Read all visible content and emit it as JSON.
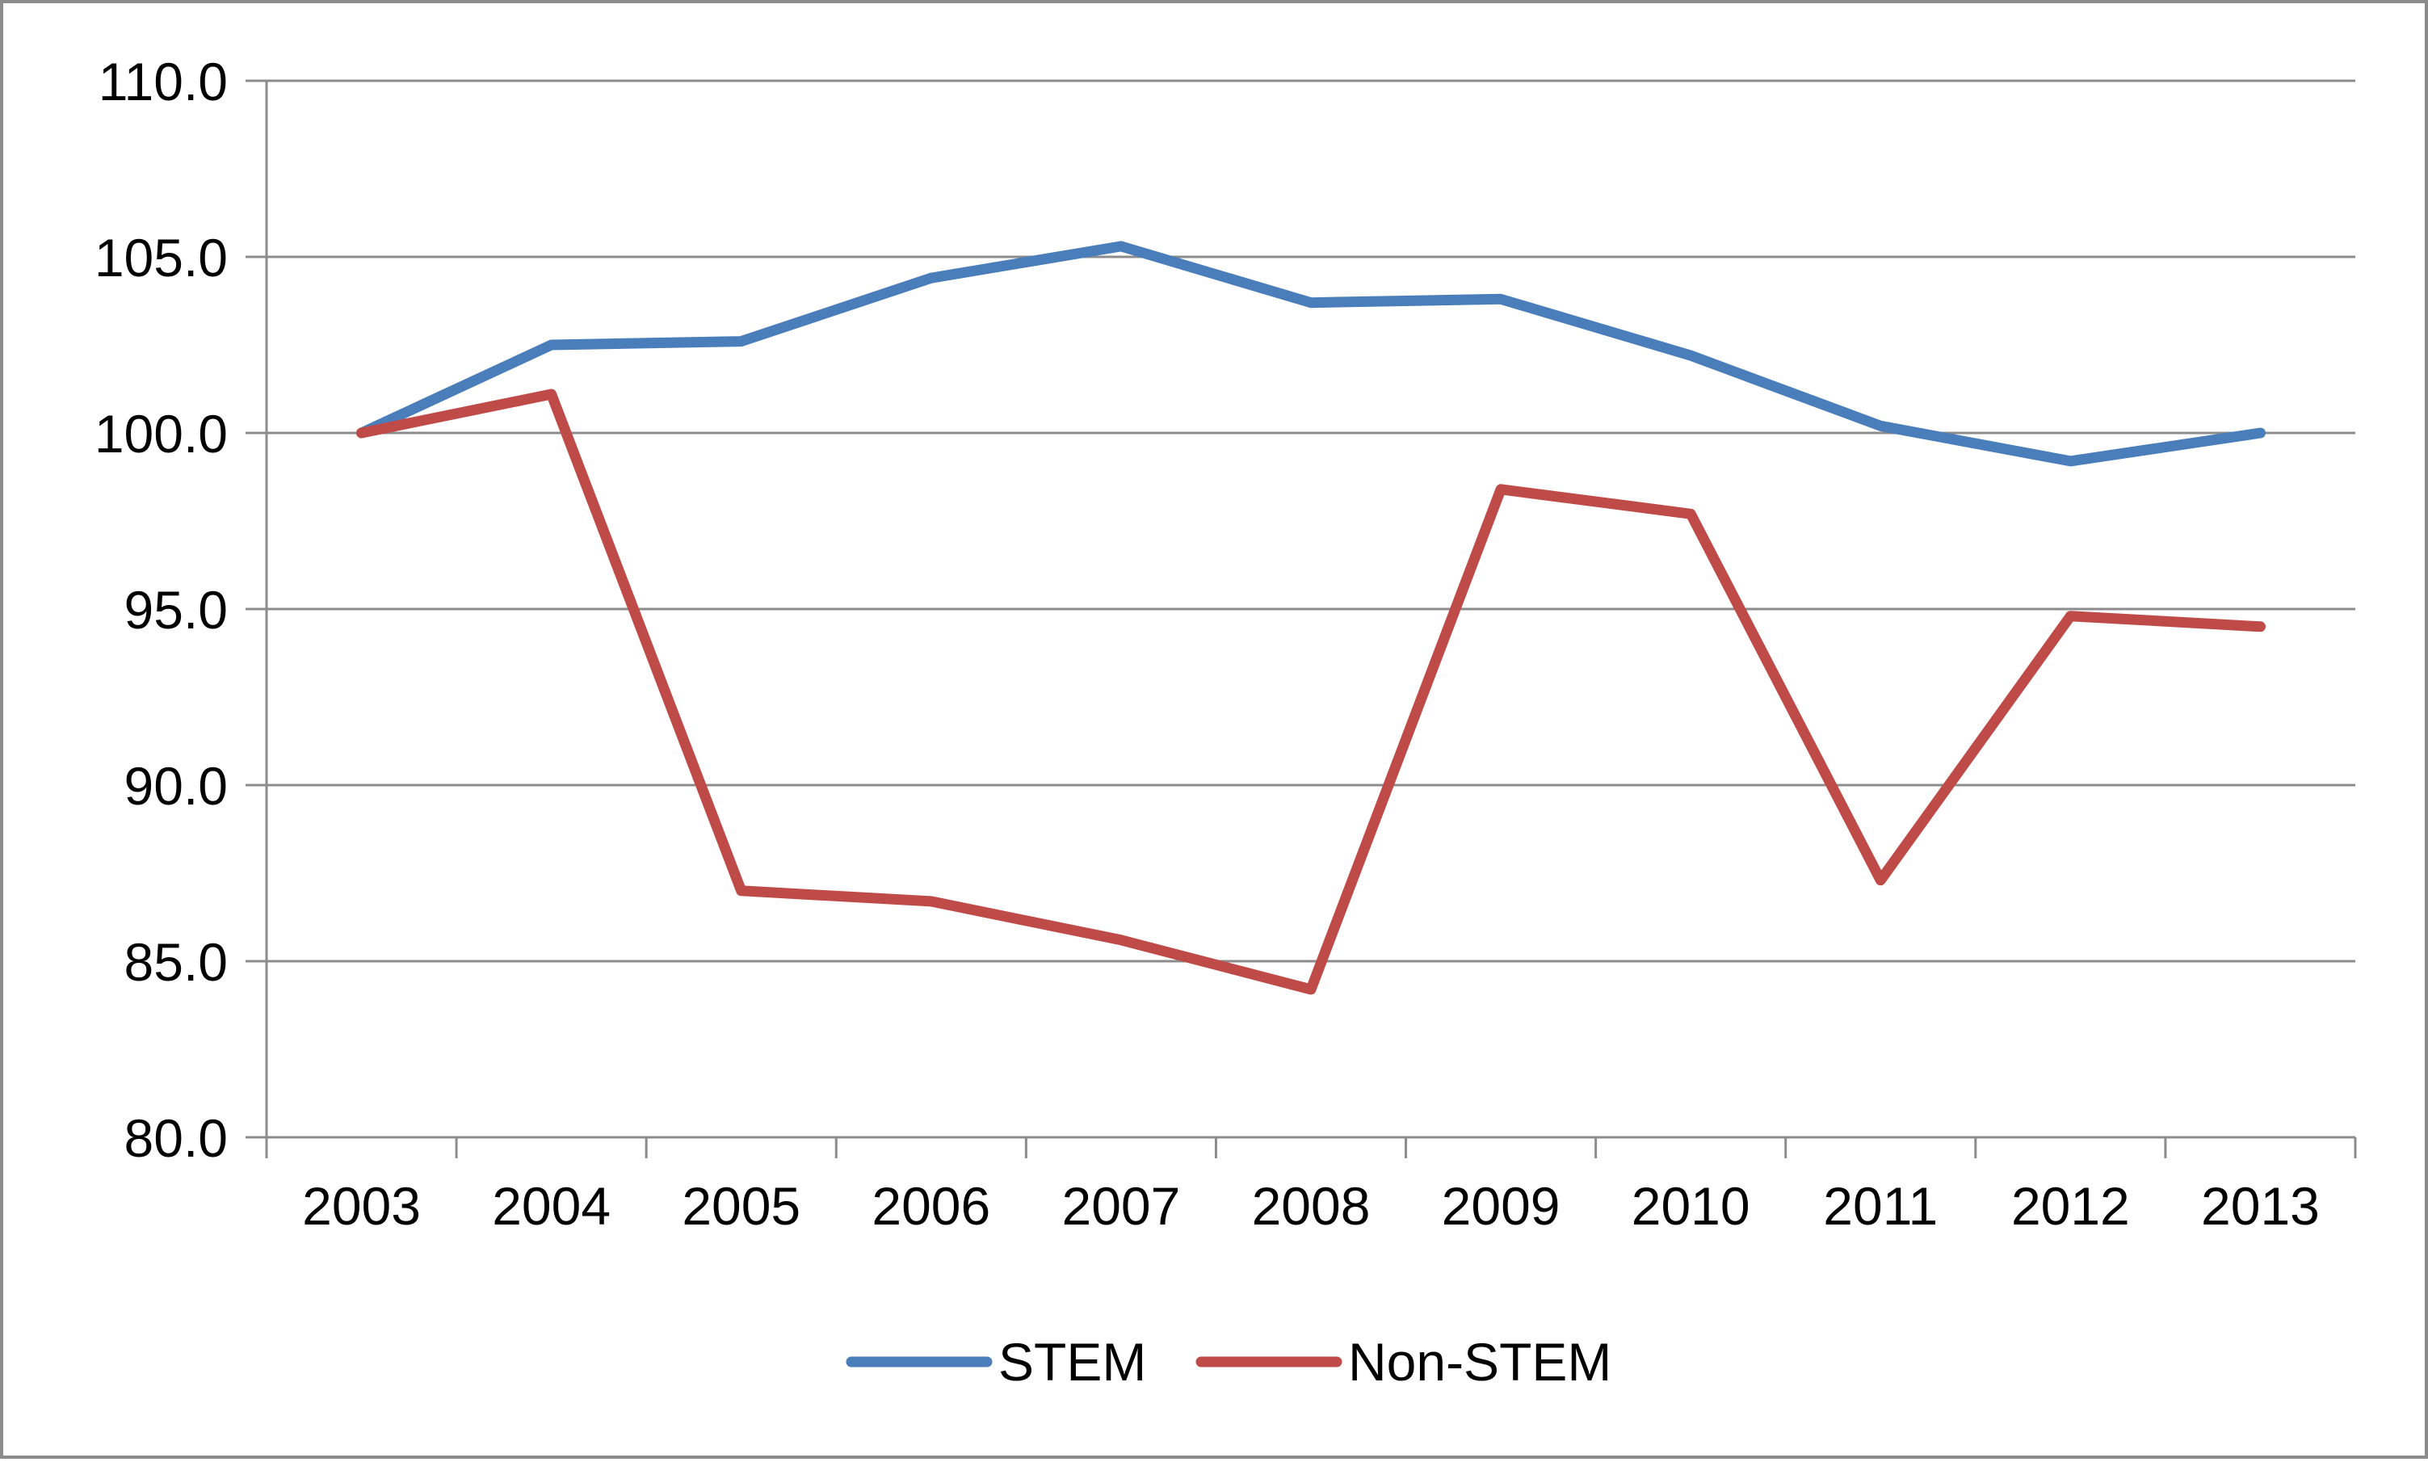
{
  "chart_data": {
    "type": "line",
    "title": "",
    "xlabel": "",
    "ylabel": "",
    "categories": [
      "2003",
      "2004",
      "2005",
      "2006",
      "2007",
      "2008",
      "2009",
      "2010",
      "2011",
      "2012",
      "2013"
    ],
    "ylim": [
      80,
      110
    ],
    "yticks": [
      80,
      85,
      90,
      95,
      100,
      105,
      110
    ],
    "ytick_labels": [
      "80.0",
      "85.0",
      "90.0",
      "95.0",
      "100.0",
      "105.0",
      "110.0"
    ],
    "grid": "horizontal",
    "legend_position": "bottom",
    "series": [
      {
        "name": "STEM",
        "color": "#4a7ebb",
        "values": [
          100.0,
          102.5,
          102.6,
          104.4,
          105.3,
          103.7,
          103.8,
          102.2,
          100.2,
          99.2,
          100.0
        ]
      },
      {
        "name": "Non-STEM",
        "color": "#be4b48",
        "values": [
          100.0,
          101.1,
          87.0,
          86.7,
          85.6,
          84.2,
          98.4,
          97.7,
          87.3,
          94.8,
          94.5
        ]
      }
    ]
  }
}
